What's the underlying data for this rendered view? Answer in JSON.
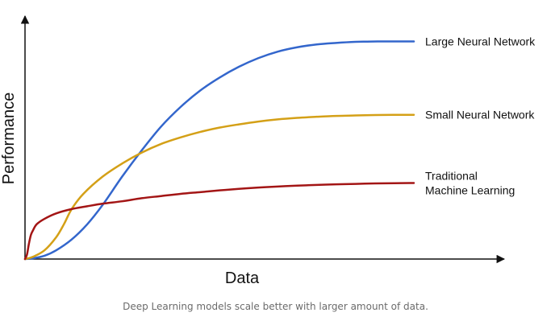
{
  "chart_data": {
    "type": "line",
    "title": "",
    "xlabel": "Data",
    "ylabel": "Performance",
    "xlim": [
      0,
      100
    ],
    "ylim": [
      0,
      100
    ],
    "grid": false,
    "legend": "inline labels at right end of each line",
    "series": [
      {
        "name": "Large Neural Network",
        "color": "#3366cc",
        "x": [
          0,
          2,
          5,
          8,
          12,
          16,
          20,
          25,
          30,
          35,
          40,
          45,
          50,
          55,
          60,
          65,
          70,
          75,
          80,
          85,
          88,
          92,
          96,
          100
        ],
        "y": [
          0,
          0.3,
          1.5,
          4,
          9,
          16,
          25,
          38,
          50,
          61,
          70,
          77.5,
          83.5,
          88.5,
          92.5,
          95.5,
          97.5,
          98.8,
          99.5,
          100,
          100.1,
          100.2,
          100.2,
          100.2
        ]
      },
      {
        "name": "Small Neural Network",
        "color": "#d4a017",
        "x": [
          0,
          2,
          5,
          8,
          10,
          12,
          15,
          20,
          25,
          30,
          35,
          40,
          45,
          50,
          55,
          60,
          65,
          70,
          75,
          80,
          85,
          90,
          95,
          100
        ],
        "y": [
          0,
          1,
          4,
          10,
          16,
          23,
          30,
          38,
          44,
          49,
          53,
          56,
          58.5,
          60.5,
          62,
          63.3,
          64.3,
          65,
          65.5,
          65.9,
          66.1,
          66.3,
          66.4,
          66.4
        ]
      },
      {
        "name": "Traditional Machine Learning",
        "color": "#a31515",
        "x": [
          0,
          0.5,
          1,
          1.5,
          2,
          3,
          5,
          8,
          12,
          16,
          20,
          25,
          30,
          35,
          40,
          45,
          50,
          55,
          60,
          65,
          70,
          75,
          80,
          85,
          90,
          95,
          100
        ],
        "y": [
          0,
          2,
          7,
          11,
          13,
          16,
          18.5,
          21,
          23,
          24.3,
          25.5,
          26.6,
          28,
          29,
          30,
          30.8,
          31.6,
          32.3,
          32.9,
          33.4,
          33.8,
          34.1,
          34.4,
          34.6,
          34.8,
          34.9,
          35
        ]
      }
    ],
    "series_labels": [
      {
        "lines": [
          "Large Neural Network"
        ]
      },
      {
        "lines": [
          "Small Neural Network"
        ]
      },
      {
        "lines": [
          "Traditional",
          "Machine Learning"
        ]
      }
    ]
  },
  "caption": "Deep Learning models scale better with larger amount of data."
}
